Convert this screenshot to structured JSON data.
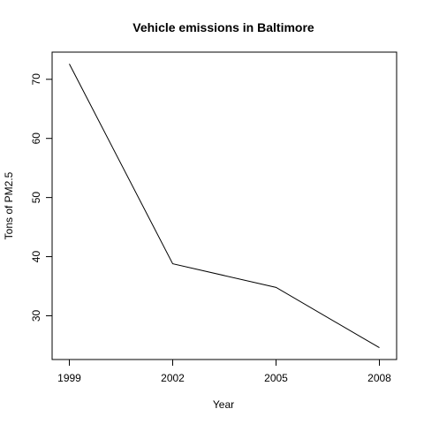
{
  "chart_data": {
    "type": "line",
    "title": "Vehicle emissions in Baltimore",
    "xlabel": "Year",
    "ylabel": "Tons of PM2.5",
    "x": [
      1999,
      2002,
      2005,
      2008
    ],
    "x_tick_labels": [
      "1999",
      "2002",
      "2005",
      "2008"
    ],
    "y_ticks": [
      30,
      40,
      50,
      60,
      70
    ],
    "y_tick_labels": [
      "30",
      "40",
      "50",
      "60",
      "70"
    ],
    "series": [
      {
        "values": [
          72.6,
          38.8,
          34.8,
          24.6
        ]
      }
    ],
    "xlim": [
      1998.5,
      2008.5
    ],
    "ylim": [
      22.6,
      74.6
    ],
    "grid": false,
    "line_color": "#000000"
  }
}
